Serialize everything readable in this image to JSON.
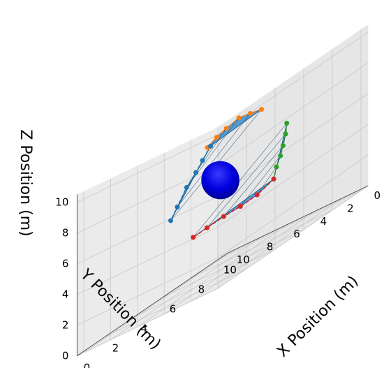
{
  "chart_data": {
    "type": "3d-scatter-surface",
    "title": "",
    "xlabel": "X Position (m)",
    "ylabel": "Y Position (m)",
    "zlabel": "Z Position (m)",
    "x_ticks": [
      "0",
      "2",
      "4",
      "6",
      "8",
      "10"
    ],
    "y_ticks": [
      "0",
      "2",
      "4",
      "6",
      "8",
      "10"
    ],
    "z_ticks": [
      "0",
      "2",
      "4",
      "6",
      "8",
      "10"
    ],
    "xlim": [
      0,
      10.5
    ],
    "ylim": [
      0,
      10.5
    ],
    "zlim": [
      0,
      10.5
    ],
    "grid": true,
    "colors": {
      "orange": "#ff7f0e",
      "blue": "#1f77b4",
      "green": "#2ca02c",
      "red": "#d62728",
      "surface": "#3a8fd0",
      "surface_edge": "#1a4f7a",
      "sphere": "#0000ff"
    },
    "series": [
      {
        "color_key": "orange",
        "points": [
          [
            6.8,
            4.0,
            9.0
          ],
          [
            6.2,
            4.2,
            9.2
          ],
          [
            5.5,
            4.3,
            9.4
          ],
          [
            5.0,
            4.7,
            9.2
          ],
          [
            4.6,
            5.0,
            9.0
          ],
          [
            4.7,
            5.8,
            8.6
          ],
          [
            5.2,
            6.1,
            8.5
          ]
        ]
      },
      {
        "color_key": "blue",
        "points": [
          [
            5.2,
            6.1,
            8.5
          ],
          [
            5.3,
            6.8,
            7.8
          ],
          [
            5.4,
            7.4,
            7.2
          ],
          [
            5.5,
            8.2,
            6.5
          ],
          [
            5.6,
            9.0,
            5.5
          ],
          [
            5.7,
            9.6,
            4.8
          ]
        ]
      },
      {
        "color_key": "green",
        "points": [
          [
            9.5,
            5.0,
            6.8
          ],
          [
            9.7,
            5.3,
            6.1
          ],
          [
            9.8,
            5.6,
            5.4
          ],
          [
            9.9,
            5.9,
            4.8
          ],
          [
            9.9,
            6.2,
            4.2
          ],
          [
            9.9,
            6.4,
            3.5
          ]
        ]
      },
      {
        "color_key": "red",
        "points": [
          [
            9.9,
            6.4,
            3.5
          ],
          [
            9.3,
            7.0,
            3.1
          ],
          [
            8.6,
            7.5,
            3.0
          ],
          [
            7.9,
            8.0,
            3.0
          ],
          [
            7.3,
            8.6,
            2.9
          ],
          [
            6.8,
            9.1,
            2.8
          ]
        ]
      }
    ],
    "sphere": {
      "center": [
        7.2,
        7.5,
        5.6
      ],
      "radius": 1.4
    }
  }
}
